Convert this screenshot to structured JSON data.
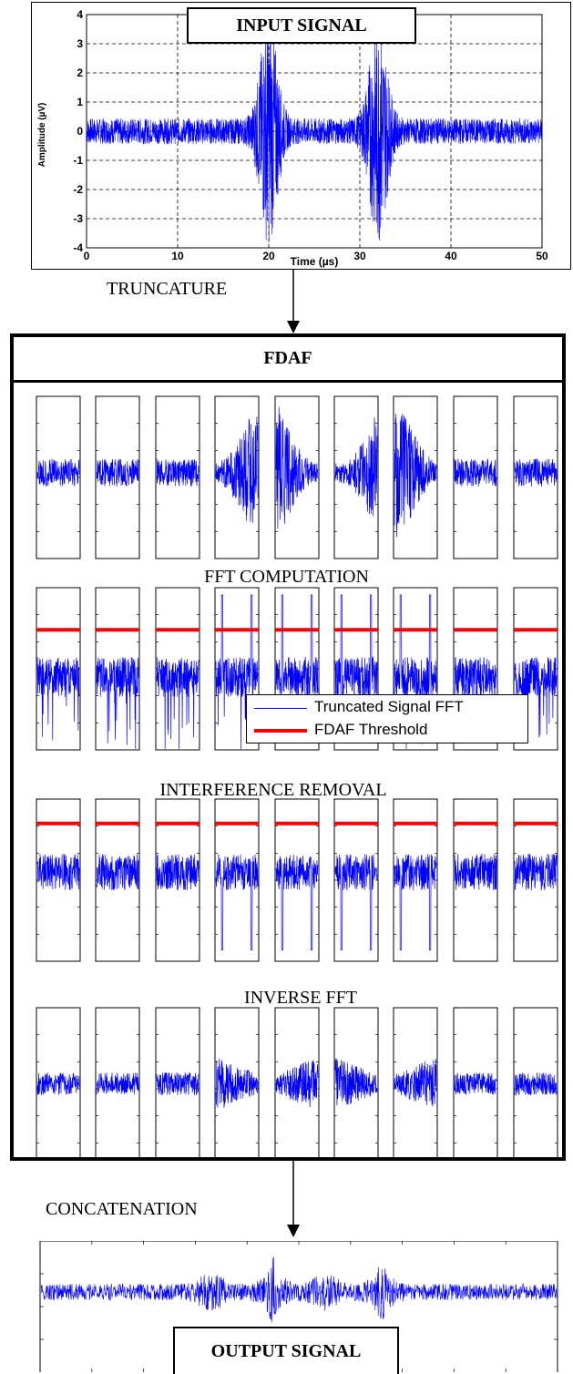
{
  "input_panel": {
    "title": "INPUT SIGNAL",
    "xlabel": "Time (µs)",
    "ylabel": "Amplitude (µV)",
    "x_ticks": [
      "0",
      "10",
      "20",
      "30",
      "40",
      "50"
    ],
    "y_ticks": [
      "4",
      "3",
      "2",
      "1",
      "0",
      "-1",
      "-2",
      "-3",
      "-4"
    ]
  },
  "steps": {
    "truncature": "TRUNCATURE",
    "fdaf_title": "FDAF",
    "fft": "FFT COMPUTATION",
    "removal": "INTERFERENCE REMOVAL",
    "inverse": "INVERSE FFT",
    "concatenation": "CONCATENATION"
  },
  "legend": {
    "signal": "Truncated Signal FFT",
    "threshold": "FDAF Threshold"
  },
  "output_panel": {
    "title": "OUTPUT SIGNAL"
  },
  "colors": {
    "signal": "#0000ff",
    "threshold": "#ff0000",
    "frame": "#000000"
  },
  "chart_data": [
    {
      "type": "line",
      "title": "INPUT SIGNAL",
      "xlabel": "Time (µs)",
      "ylabel": "Amplitude (µV)",
      "xlim": [
        0,
        50
      ],
      "ylim": [
        -4,
        4
      ],
      "grid": true,
      "series": [
        {
          "bursts": [
            {
              "center": 20,
              "amplitude": 3.5
            },
            {
              "center": 32,
              "amplitude": 3.5
            }
          ],
          "noise_amplitude": 0.8
        }
      ]
    }
  ]
}
